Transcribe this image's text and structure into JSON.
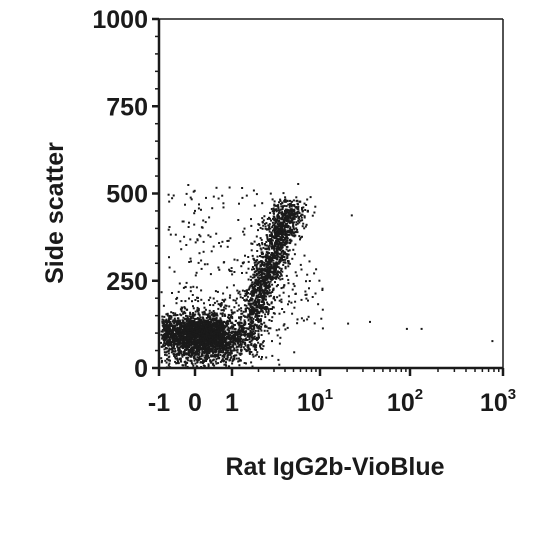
{
  "chart_data": {
    "type": "scatter",
    "title": "",
    "xlabel": "Rat IgG2b-VioBlue",
    "ylabel": "Side scatter",
    "x_scale": "biexponential",
    "ylim": [
      0,
      1000
    ],
    "y_ticks": [
      {
        "value": 0,
        "label": "0"
      },
      {
        "value": 250,
        "label": "250"
      },
      {
        "value": 500,
        "label": "500"
      },
      {
        "value": 750,
        "label": "750"
      },
      {
        "value": 1000,
        "label": "1000"
      }
    ],
    "x_ticks": [
      {
        "value": -1,
        "base": "-1",
        "exp": ""
      },
      {
        "value": 0,
        "base": "0",
        "exp": ""
      },
      {
        "value": 1,
        "base": "1",
        "exp": ""
      },
      {
        "value": 10,
        "base": "10",
        "exp": "1"
      },
      {
        "value": 100,
        "base": "10",
        "exp": "2"
      },
      {
        "value": 1000,
        "base": "10",
        "exp": "3"
      }
    ],
    "grid": false,
    "legend": "none",
    "color": "#1a1a1a",
    "populations": [
      {
        "x_center": 0.2,
        "y_center": 90,
        "note": "main dense cluster"
      },
      {
        "x_from": 1.5,
        "y_from": 120,
        "x_to": 4.5,
        "y_to": 470,
        "note": "ascending dense tail"
      }
    ],
    "points": [
      {
        "x": 5.5,
        "y": 530
      },
      {
        "x": 22,
        "y": 440
      },
      {
        "x": 20,
        "y": 130
      },
      {
        "x": 35,
        "y": 135
      },
      {
        "x": 90,
        "y": 115
      },
      {
        "x": 130,
        "y": 115
      },
      {
        "x": 750,
        "y": 80
      },
      {
        "x": 6,
        "y": 285
      },
      {
        "x": 6.5,
        "y": 325
      }
    ]
  }
}
